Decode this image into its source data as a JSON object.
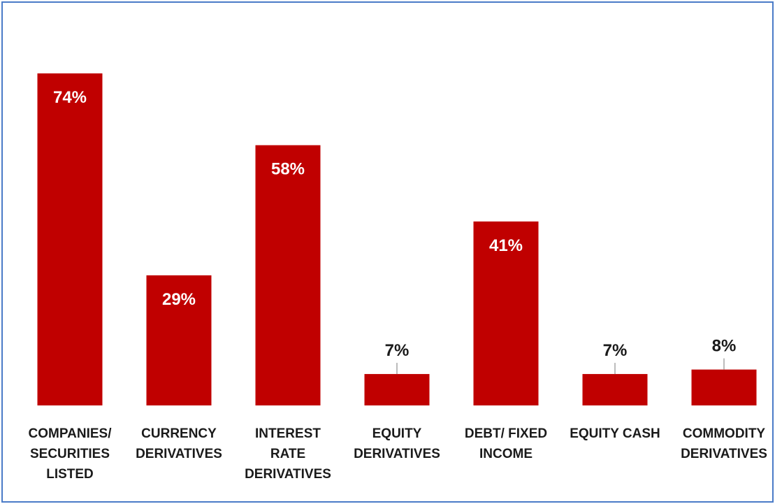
{
  "chart_data": {
    "type": "bar",
    "categories": [
      [
        "COMPANIES/",
        "SECURITIES",
        "LISTED"
      ],
      [
        "CURRENCY",
        "DERIVATIVES"
      ],
      [
        "INTEREST",
        "RATE",
        "DERIVATIVES"
      ],
      [
        "EQUITY",
        "DERIVATIVES"
      ],
      [
        "DEBT/ FIXED",
        "INCOME"
      ],
      [
        "EQUITY CASH"
      ],
      [
        "COMMODITY",
        "DERIVATIVES"
      ]
    ],
    "values": [
      74,
      29,
      58,
      7,
      41,
      7,
      8
    ],
    "data_labels": [
      "74%",
      "29%",
      "58%",
      "7%",
      "41%",
      "7%",
      "8%"
    ],
    "label_inside_bar": [
      true,
      true,
      true,
      false,
      true,
      false,
      false
    ],
    "title": "",
    "xlabel": "",
    "ylabel": "",
    "ylim": [
      0,
      74
    ],
    "grid": false,
    "legend": "none",
    "colors": {
      "bar": "#c00000",
      "label_inside": "#ffffff",
      "label_outside": "#1a1a1a",
      "frame": "#4a7bc8",
      "leader_line": "#a6a6a6"
    }
  }
}
